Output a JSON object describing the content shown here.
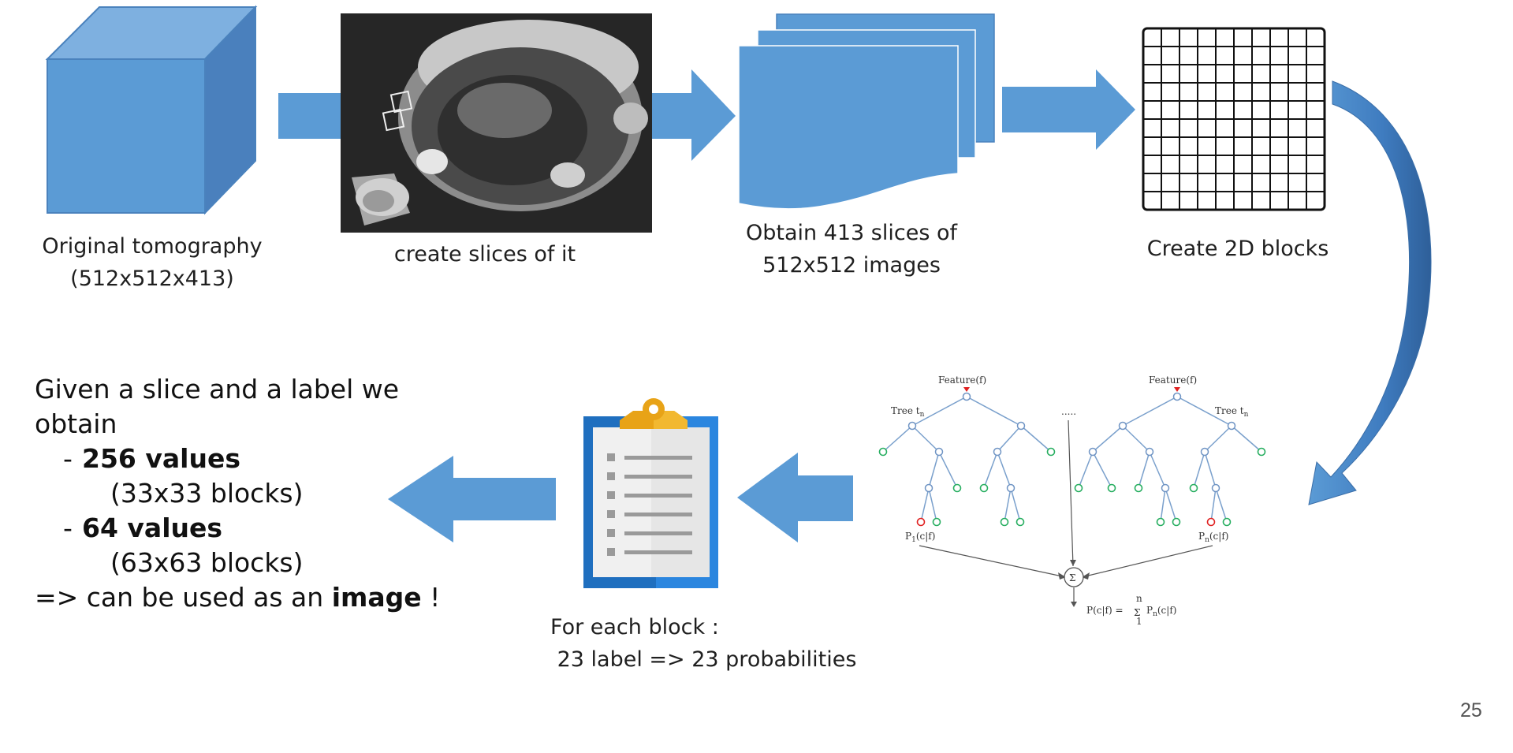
{
  "captions": {
    "tomography": [
      "Original tomography",
      "(512x512x413)"
    ],
    "slices": "create slices of it",
    "obtain": [
      "Obtain 413 slices of",
      "512x512 images"
    ],
    "blocks": "Create 2D blocks",
    "foreach": [
      "For each block :",
      " 23 label => 23 probabilities"
    ]
  },
  "summary": {
    "line1": "Given a slice and a label we",
    "line2": "obtain",
    "bullet_dash": "-",
    "item1_bold": "256 values",
    "item1_sub": "(33x33 blocks)",
    "item2_bold": "64 values",
    "item2_sub": "(63x63 blocks)",
    "final_prefix": "=> can be used as an ",
    "final_bold": "image",
    "final_suffix": " !"
  },
  "forest": {
    "feature_left": "Feature(f)",
    "feature_right": "Feature(f)",
    "tree_left": "Tree t",
    "tree_left_sub": "n",
    "tree_right": "Tree t",
    "tree_right_sub": "n",
    "dots": ".....",
    "p_left": "P",
    "p_left_sub": "1",
    "p_left_rest": "(c|f)",
    "p_right": "P",
    "p_right_sub": "n",
    "p_right_rest": "(c|f)",
    "sum_symbol": "Σ",
    "formula_lhs": "P(c|f) = ",
    "formula_sum": "Σ",
    "formula_top": "n",
    "formula_bottom": "1",
    "formula_rhs": "P",
    "formula_rhs_sub": "n",
    "formula_rhs_rest": "(c|f)"
  },
  "page_number": "25",
  "colors": {
    "blue": "#5b9bd5",
    "blue_dark": "#41719c",
    "clip_yellow": "#e8a317",
    "leaf_green": "#27ae60",
    "leaf_red": "#e02020"
  }
}
